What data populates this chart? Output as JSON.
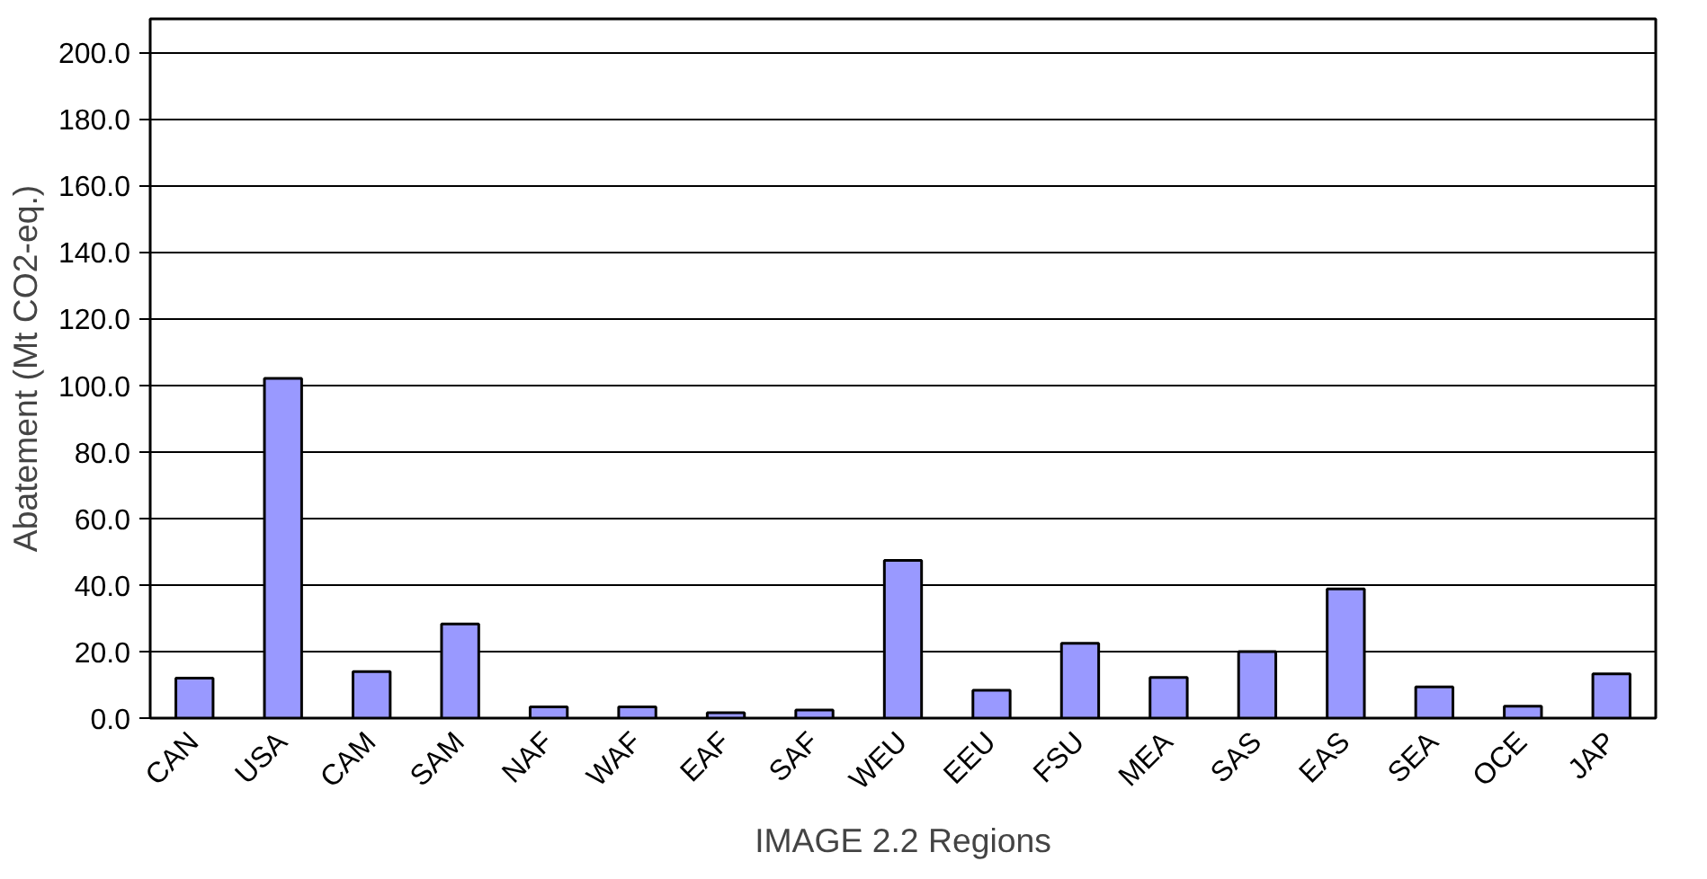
{
  "chart_data": {
    "type": "bar",
    "xlabel": "IMAGE 2.2 Regions",
    "ylabel": "Abatement (Mt CO2-eq.)",
    "categories": [
      "CAN",
      "USA",
      "CAM",
      "SAM",
      "NAF",
      "WAF",
      "EAF",
      "SAF",
      "WEU",
      "EEU",
      "FSU",
      "MEA",
      "SAS",
      "EAS",
      "SEA",
      "OCE",
      "JAP"
    ],
    "values": [
      12.0,
      102,
      14,
      28.3,
      3.4,
      3.4,
      1.6,
      2.4,
      47.4,
      8.4,
      22.5,
      12.2,
      20,
      38.8,
      9.4,
      3.6,
      13.3
    ],
    "color": "#9999ff",
    "ylim": [
      0,
      210
    ],
    "yticks": [
      {
        "value": 0,
        "label": "0.0"
      },
      {
        "value": 20,
        "label": "20.0"
      },
      {
        "value": 40,
        "label": "40.0"
      },
      {
        "value": 60,
        "label": "60.0"
      },
      {
        "value": 80,
        "label": "80.0"
      },
      {
        "value": 100,
        "label": "100.0"
      },
      {
        "value": 120,
        "label": "120.0"
      },
      {
        "value": 140,
        "label": "140.0"
      },
      {
        "value": 160,
        "label": "160.0"
      },
      {
        "value": 180,
        "label": "180.0"
      },
      {
        "value": 200,
        "label": "200.0"
      }
    ],
    "grid": "y"
  }
}
